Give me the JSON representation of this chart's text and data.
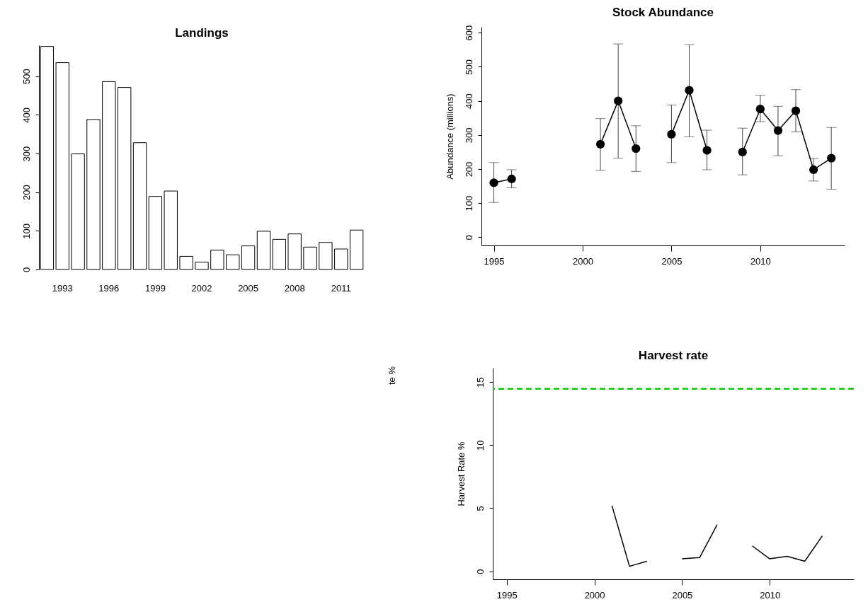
{
  "chart_data": [
    {
      "type": "bar",
      "title": "Landings",
      "categories": [
        null,
        "1993",
        null,
        null,
        "1996",
        null,
        null,
        "1999",
        null,
        null,
        "2002",
        null,
        null,
        "2005",
        null,
        null,
        "2008",
        null,
        null,
        "2011",
        null
      ],
      "values": [
        577,
        535,
        299,
        388,
        486,
        471,
        328,
        189,
        203,
        34,
        19,
        50,
        38,
        61,
        99,
        78,
        92,
        58,
        70,
        53,
        102
      ],
      "color": "#ffffff",
      "ylim": [
        0,
        580
      ],
      "yticks": [
        0,
        100,
        200,
        300,
        400,
        500
      ],
      "grid": false
    },
    {
      "type": "line",
      "title": "Stock Abundance",
      "ylabel": "Abundance (millions)",
      "x": [
        1995,
        1996,
        1997,
        1998,
        1999,
        2000,
        2001,
        2002,
        2003,
        2004,
        2005,
        2006,
        2007,
        2008,
        2009,
        2010,
        2011,
        2012,
        2013,
        2014
      ],
      "values": [
        160,
        171,
        null,
        null,
        null,
        null,
        273,
        400,
        260,
        null,
        302,
        431,
        255,
        null,
        250,
        376,
        313,
        371,
        198,
        232
      ],
      "errors": [
        [
          102,
          219
        ],
        [
          145,
          198
        ],
        null,
        null,
        null,
        null,
        [
          196,
          348
        ],
        [
          232,
          567
        ],
        [
          193,
          327
        ],
        null,
        [
          219,
          388
        ],
        [
          295,
          565
        ],
        [
          198,
          314
        ],
        null,
        [
          183,
          320
        ],
        [
          339,
          416
        ],
        [
          239,
          384
        ],
        [
          309,
          433
        ],
        [
          165,
          231
        ],
        [
          141,
          322
        ]
      ],
      "color": "#000000",
      "marker": "circle",
      "xlim": [
        1994.3,
        2014.75
      ],
      "xticks": [
        1995,
        2000,
        2005,
        2010
      ],
      "ylim": [
        -24,
        617
      ],
      "yticks": [
        0,
        100,
        200,
        300,
        400,
        500,
        600
      ],
      "grid": false
    },
    {
      "type": "line",
      "title": "Harvest rate",
      "ylabel": "Harvest Rate %",
      "x": [
        2001,
        2002,
        2003,
        2004,
        2005,
        2006,
        2007,
        2008,
        2009,
        2010,
        2011,
        2012,
        2013
      ],
      "values": [
        5.2,
        0.39,
        0.79,
        null,
        0.98,
        1.08,
        3.68,
        null,
        2.01,
        0.98,
        1.18,
        0.79,
        2.8
      ],
      "color": "#000000",
      "ref_lines": [
        {
          "axis": "y",
          "value": 14.46,
          "color": "#00cc00",
          "line_style": "dashed"
        }
      ],
      "annotations": [
        "te %"
      ],
      "xlim": [
        1994.2,
        2014.8
      ],
      "xticks": [
        1995,
        2000,
        2005,
        2010
      ],
      "ylim": [
        -0.64,
        16.13
      ],
      "yticks": [
        0,
        5,
        10,
        15
      ],
      "grid": false
    }
  ]
}
